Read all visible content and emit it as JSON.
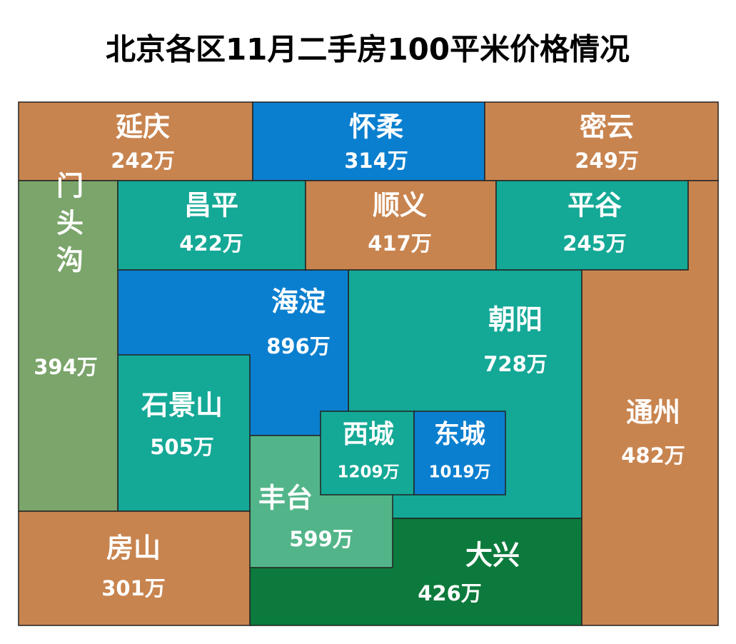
{
  "title": "北京各区11月二手房100平米价格情况",
  "districts": [
    {
      "name": "延庆",
      "price": "242万"
    },
    {
      "name": "怀柔",
      "price": "314万"
    },
    {
      "name": "密云",
      "price": "249万"
    },
    {
      "name": "门头沟",
      "price": "394万"
    },
    {
      "name": "昌平",
      "price": "422万"
    },
    {
      "name": "顺义",
      "price": "417万"
    },
    {
      "name": "平谷",
      "price": "245万"
    },
    {
      "name": "海淀",
      "price": "896万"
    },
    {
      "name": "朝阳",
      "price": "728万"
    },
    {
      "name": "石景山",
      "price": "505万"
    },
    {
      "name": "通州",
      "price": "482万"
    },
    {
      "name": "西城",
      "price": "1209万"
    },
    {
      "name": "东城",
      "price": "1019万"
    },
    {
      "name": "丰台",
      "price": "599万"
    },
    {
      "name": "房山",
      "price": "301万"
    },
    {
      "name": "大兴",
      "price": "426万"
    }
  ]
}
